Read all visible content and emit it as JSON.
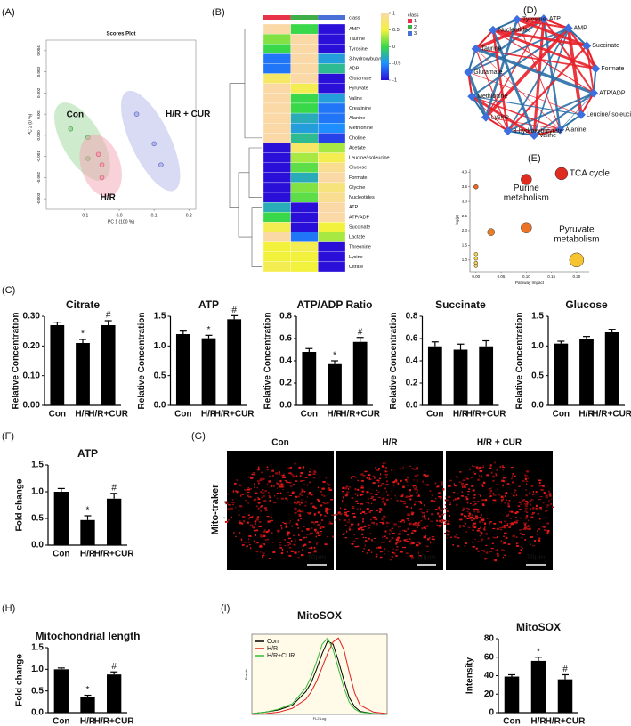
{
  "chart_data": [
    {
      "type": "scatter",
      "panel": "(A)",
      "title": "Scores Plot",
      "xlabel": "PC 1 (100 %)",
      "ylabel": "PC 2 (0 %)",
      "xlim": [
        -0.21,
        0.22
      ],
      "xticks": [
        -0.1,
        {
          "value": 0,
          "label": "0.0"
        },
        0.1,
        0.2
      ],
      "ylim": [
        -0.0035,
        0.0045
      ],
      "yticks": [
        -0.003,
        -0.002,
        -0.001,
        {
          "value": 0,
          "label": "0.000"
        },
        0.001,
        0.002,
        0.003,
        0.004
      ],
      "series": [
        {
          "name": "Con",
          "color": "#9fd89b",
          "x": [
            -0.14,
            -0.09,
            -0.09
          ],
          "y": [
            0.0003,
            -0.0001,
            -0.0011
          ]
        },
        {
          "name": "H/R",
          "color": "#f4a3b3",
          "x": [
            -0.05,
            -0.05,
            -0.06
          ],
          "y": [
            -0.0014,
            -0.002,
            -0.0009
          ]
        },
        {
          "name": "H/R + CUR",
          "color": "#b3b8ea",
          "x": [
            0.05,
            0.1,
            0.12
          ],
          "y": [
            0.001,
            -0.0004,
            -0.0014
          ]
        }
      ]
    },
    {
      "type": "heatmap",
      "panel": "(B)",
      "rows": [
        "AMP",
        "Taurine",
        "Tyrosine",
        "3-hydroxybutyrate",
        "ADP",
        "Glutamate",
        "Pyruvate",
        "Valine",
        "Creatinine",
        "Alanine",
        "Methionine",
        "Choline",
        "Acetate",
        "Leucine/Isoleucine",
        "Glucose",
        "Formate",
        "Glycine",
        "Nucleotides",
        "ATP",
        "ATP/ADP",
        "Succinate",
        "Lactate",
        "Threonine",
        "Lysine",
        "Citrate"
      ],
      "values": [
        [
          1,
          0,
          -1
        ],
        [
          0.2,
          1,
          -1
        ],
        [
          0,
          1,
          -1
        ],
        [
          -0.6,
          1,
          -0.4
        ],
        [
          -0.6,
          1,
          -0.2
        ],
        [
          0.7,
          1,
          -1
        ],
        [
          1,
          0.6,
          -1
        ],
        [
          1,
          0,
          -0.4
        ],
        [
          1,
          0,
          -0.6
        ],
        [
          1,
          -0.3,
          -0.6
        ],
        [
          1,
          -0.4,
          -0.5
        ],
        [
          1,
          -0.2,
          -0.8
        ],
        [
          -1,
          0.7,
          0.3
        ],
        [
          -1,
          0.3,
          0.6
        ],
        [
          -1,
          0.1,
          0.9
        ],
        [
          -1,
          -0.3,
          1
        ],
        [
          -1,
          0.2,
          0.8
        ],
        [
          -1,
          0.1,
          0.9
        ],
        [
          -0.3,
          -1,
          1
        ],
        [
          0,
          -1,
          1
        ],
        [
          0.6,
          -1,
          0.5
        ],
        [
          1,
          -0.6,
          0.3
        ],
        [
          0.5,
          0.6,
          -1
        ],
        [
          0.5,
          0.5,
          -1
        ],
        [
          0.6,
          0.5,
          -1
        ]
      ],
      "clim": [
        -1,
        1
      ],
      "colors": [
        "#2a0fd8",
        "#1f8fff",
        "#38d84a",
        "#f2f23c",
        "#fbd9a6"
      ],
      "ticks": [
        1,
        0.5,
        0,
        -0.5,
        -1
      ],
      "class_title": "class",
      "classes": [
        "1",
        "2",
        "3"
      ],
      "class_colors": [
        "#e8324a",
        "#3fae49",
        "#4a6fd6"
      ]
    },
    {
      "type": "network",
      "panel": "(D)",
      "nodes": [
        "ATP",
        "AMP",
        "Succinate",
        "Formate",
        "ATP/ADP",
        "Leucine/Isoleucine",
        "Alanine",
        "Valine",
        "3-hydroxybutyrate",
        "Lysine",
        "Methionine",
        "Glutamate",
        "Taurine",
        "Nucleotides",
        "Tyrosine"
      ]
    },
    {
      "type": "bubble",
      "panel": "(E)",
      "xlabel": "Pathway Impact",
      "ylabel": "-log(p)",
      "xlim": [
        -0.012,
        0.225
      ],
      "xticks": [
        {
          "value": 0,
          "label": "0.00"
        },
        0.05,
        {
          "value": 0.1,
          "label": "0.10"
        },
        0.15,
        {
          "value": 0.2,
          "label": "0.20"
        }
      ],
      "ylim": [
        0.6,
        4.1
      ],
      "yticks": [
        {
          "value": 1,
          "label": "1.0"
        },
        1.5,
        {
          "value": 2,
          "label": "2.0"
        },
        2.5,
        {
          "value": 3,
          "label": "3.0"
        },
        3.5,
        {
          "value": 4,
          "label": "4.0"
        }
      ],
      "x": [
        0,
        0.1,
        0.17,
        0.03,
        0.1,
        0.2,
        0,
        0,
        0,
        0
      ],
      "y": [
        3.5,
        3.75,
        3.95,
        1.95,
        2.1,
        1.0,
        1.2,
        1.05,
        0.9,
        0.8
      ],
      "sizes": [
        2.5,
        6,
        7,
        4,
        6,
        8,
        2,
        2,
        2,
        2
      ],
      "colors": [
        "#e8662a",
        "#e02b1f",
        "#e02b1f",
        "#ea7d27",
        "#ea7328",
        "#f6c431",
        "#f7d35a",
        "#f7d35a",
        "#f7d35a",
        "#f7d35a"
      ],
      "labels": [
        null,
        [
          "Purine",
          "metabolism"
        ],
        [
          "TCA cycle"
        ],
        null,
        null,
        [
          "Pyruvate",
          "metabolism"
        ],
        null,
        null,
        null,
        null
      ]
    },
    {
      "type": "bar",
      "panel": "(C)",
      "title": "Citrate",
      "ylabel": "Relative Concentration",
      "categories": [
        "Con",
        "H/R",
        "H/R+CUR"
      ],
      "values": [
        0.27,
        0.21,
        0.27
      ],
      "errors": [
        0.01,
        0.012,
        0.015
      ],
      "annotations": [
        null,
        "*",
        "#"
      ],
      "color": "#000000",
      "ylim": [
        0,
        0.3
      ],
      "yticks": [
        {
          "value": 0,
          "label": "0.00"
        },
        {
          "value": 0.1,
          "label": "0.10"
        },
        {
          "value": 0.2,
          "label": "0.20"
        },
        {
          "value": 0.3,
          "label": "0.30"
        }
      ]
    },
    {
      "type": "bar",
      "title": "ATP",
      "ylabel": "Relative Concentration",
      "categories": [
        "Con",
        "H/R",
        "H/R+CUR"
      ],
      "values": [
        1.2,
        1.13,
        1.45
      ],
      "errors": [
        0.05,
        0.05,
        0.06
      ],
      "annotations": [
        null,
        "*",
        "#"
      ],
      "color": "#000000",
      "ylim": [
        0,
        1.5
      ],
      "yticks": [
        {
          "value": 0,
          "label": "0.0"
        },
        0.5,
        {
          "value": 1,
          "label": "1.0"
        },
        1.5
      ]
    },
    {
      "type": "bar",
      "title": "ATP/ADP Ratio",
      "ylabel": "Relative Concentration",
      "categories": [
        "Con",
        "H/R",
        "H/R+CUR"
      ],
      "values": [
        0.48,
        0.37,
        0.57
      ],
      "errors": [
        0.03,
        0.03,
        0.04
      ],
      "annotations": [
        null,
        "*",
        "#"
      ],
      "color": "#000000",
      "ylim": [
        0,
        0.8
      ],
      "yticks": [
        {
          "value": 0,
          "label": "0.0"
        },
        0.2,
        0.4,
        0.6,
        0.8
      ]
    },
    {
      "type": "bar",
      "title": "Succinate",
      "ylabel": "Relative Concentration",
      "categories": [
        "Con",
        "H/R",
        "H/R+CUR"
      ],
      "values": [
        0.53,
        0.5,
        0.53
      ],
      "errors": [
        0.04,
        0.05,
        0.05
      ],
      "annotations": [
        null,
        null,
        null
      ],
      "color": "#000000",
      "ylim": [
        0,
        0.8
      ],
      "yticks": [
        {
          "value": 0,
          "label": "0.0"
        },
        0.2,
        0.4,
        0.6,
        0.8
      ]
    },
    {
      "type": "bar",
      "title": "Glucose",
      "ylabel": "Relative Concentration",
      "categories": [
        "Con",
        "H/R",
        "H/R+CUR"
      ],
      "values": [
        1.04,
        1.11,
        1.23
      ],
      "errors": [
        0.04,
        0.05,
        0.05
      ],
      "annotations": [
        null,
        null,
        null
      ],
      "color": "#000000",
      "ylim": [
        0,
        1.5
      ],
      "yticks": [
        {
          "value": 0,
          "label": "0.0"
        },
        0.5,
        {
          "value": 1,
          "label": "1.0"
        },
        1.5
      ]
    },
    {
      "type": "bar",
      "panel": "(F)",
      "title": "ATP",
      "ylabel": "Fold change",
      "categories": [
        "Con",
        "H/R",
        "H/R+CUR"
      ],
      "values": [
        1.0,
        0.47,
        0.87
      ],
      "errors": [
        0.06,
        0.08,
        0.1
      ],
      "annotations": [
        null,
        "*",
        "#"
      ],
      "color": "#000000",
      "ylim": [
        0,
        1.5
      ],
      "yticks": [
        {
          "value": 0,
          "label": "0.0"
        },
        0.5,
        {
          "value": 1,
          "label": "1.0"
        },
        1.5
      ]
    },
    {
      "type": "bar",
      "panel": "(H)",
      "title": "Mitochondrial length",
      "ylabel": "Fold change",
      "categories": [
        "Con",
        "H/R",
        "H/R+CUR"
      ],
      "values": [
        1.0,
        0.36,
        0.88
      ],
      "errors": [
        0.03,
        0.04,
        0.06
      ],
      "annotations": [
        null,
        "*",
        "#"
      ],
      "color": "#000000",
      "ylim": [
        0,
        1.5
      ],
      "yticks": [
        {
          "value": 0,
          "label": "0.0"
        },
        0.5,
        {
          "value": 1,
          "label": "1.0"
        },
        1.5
      ]
    },
    {
      "type": "line",
      "panel": "(I)",
      "title": "MitoSOX",
      "xlabel": "FL2 Log",
      "ylabel": "Events",
      "xlim": [
        30,
        80
      ],
      "ylim": [
        0,
        105
      ],
      "x": [
        30,
        35,
        40,
        45,
        50,
        52,
        54,
        56,
        58,
        60,
        62,
        64,
        66,
        68,
        70,
        75,
        80
      ],
      "series": [
        {
          "name": "Con",
          "color": "#000000",
          "values": [
            1,
            3,
            6,
            12,
            30,
            42,
            60,
            80,
            96,
            92,
            70,
            45,
            22,
            10,
            4,
            1,
            0
          ]
        },
        {
          "name": "H/R",
          "color": "#e02020",
          "values": [
            0,
            1,
            3,
            8,
            20,
            30,
            44,
            62,
            80,
            95,
            100,
            85,
            55,
            28,
            12,
            3,
            1
          ]
        },
        {
          "name": "H/R+CUR",
          "color": "#33bb33",
          "values": [
            1,
            3,
            7,
            14,
            35,
            50,
            70,
            92,
            100,
            85,
            60,
            35,
            16,
            7,
            3,
            1,
            0
          ]
        }
      ]
    },
    {
      "type": "bar",
      "title": "MitoSOX",
      "ylabel": "Intensity",
      "categories": [
        "Con",
        "H/R",
        "H/R+CUR"
      ],
      "values": [
        39,
        56,
        36
      ],
      "errors": [
        2,
        4,
        5
      ],
      "annotations": [
        null,
        "*",
        "#"
      ],
      "color": "#000000",
      "ylim": [
        0,
        80
      ],
      "yticks": [
        0,
        20,
        40,
        60,
        80
      ]
    }
  ],
  "micrographs": {
    "panel": "(G)",
    "columns": [
      "Con",
      "H/R",
      "H/R + CUR"
    ],
    "row_label": "Mito-traker",
    "scale_bar": "10μm"
  }
}
